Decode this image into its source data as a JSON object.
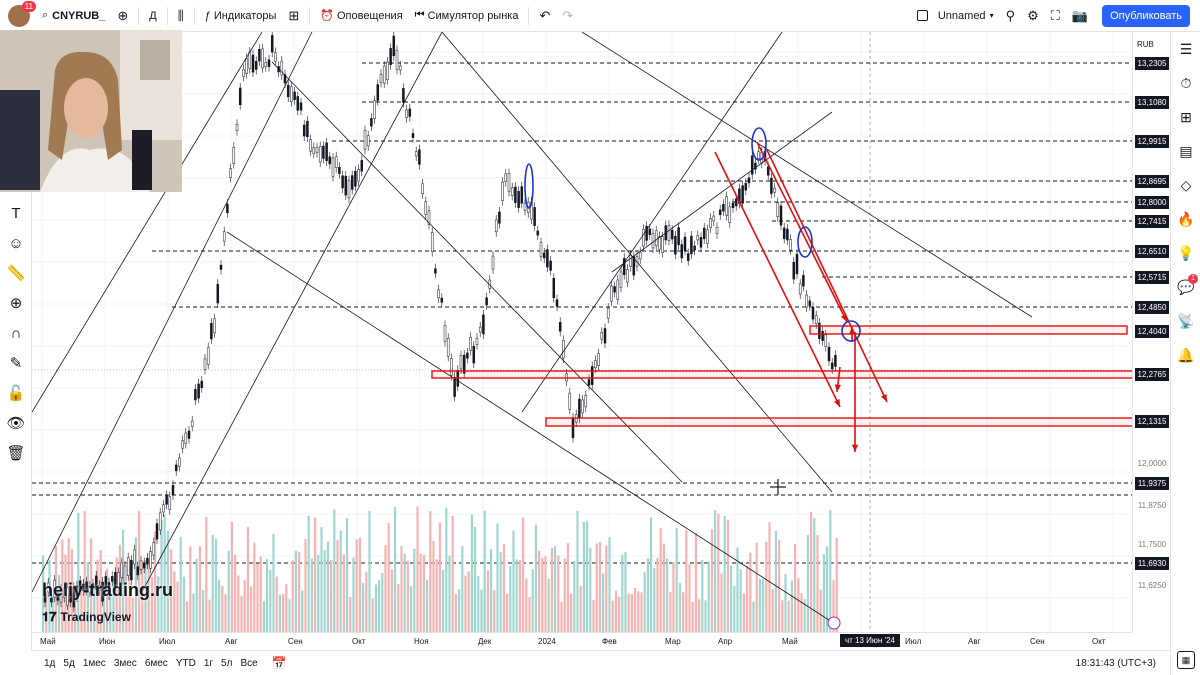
{
  "toolbar": {
    "avatar_badge": "11",
    "symbol": "CNYRUB_",
    "interval": "Д",
    "indicators": "Индикаторы",
    "alerts": "Оповещения",
    "replay": "Симулятор рынка",
    "layout_name": "Unnamed",
    "publish": "Опубликовать"
  },
  "right_toolbar": {
    "notification_badge": "1"
  },
  "price_axis": {
    "currency": "RUB",
    "highlighted_levels": [
      "13,2305",
      "13,1080",
      "12,9915",
      "12,8695",
      "12,8000",
      "12,7415",
      "12,6510",
      "12,5715",
      "12,4850",
      "12,4040",
      "12,2765",
      "12,1315",
      "11,9375",
      "11,6930"
    ],
    "plain_ticks": [
      "12,0000",
      "11,8750",
      "11,7500",
      "11,6250"
    ]
  },
  "time_axis": {
    "labels": [
      "Май",
      "Июн",
      "Июл",
      "Авг",
      "Сен",
      "Окт",
      "Ноя",
      "Дек",
      "2024",
      "Фев",
      "Мар",
      "Апр",
      "Май",
      "Июл",
      "Авг",
      "Сен",
      "Окт"
    ],
    "current": "чт 13 Июн '24"
  },
  "bottom_bar": {
    "ranges": [
      "1д",
      "5д",
      "1мес",
      "3мес",
      "6мес",
      "YTD",
      "1г",
      "5л",
      "Все"
    ],
    "clock": "18:31:43 (UTC+3)"
  },
  "watermark": {
    "site": "heliy-trading.ru",
    "logo": "TradingView"
  },
  "colors": {
    "accent": "#2962ff",
    "up": "#26a69a",
    "down": "#ef5350",
    "drawing_red": "#e01010",
    "drawing_blue": "#2233cc"
  }
}
